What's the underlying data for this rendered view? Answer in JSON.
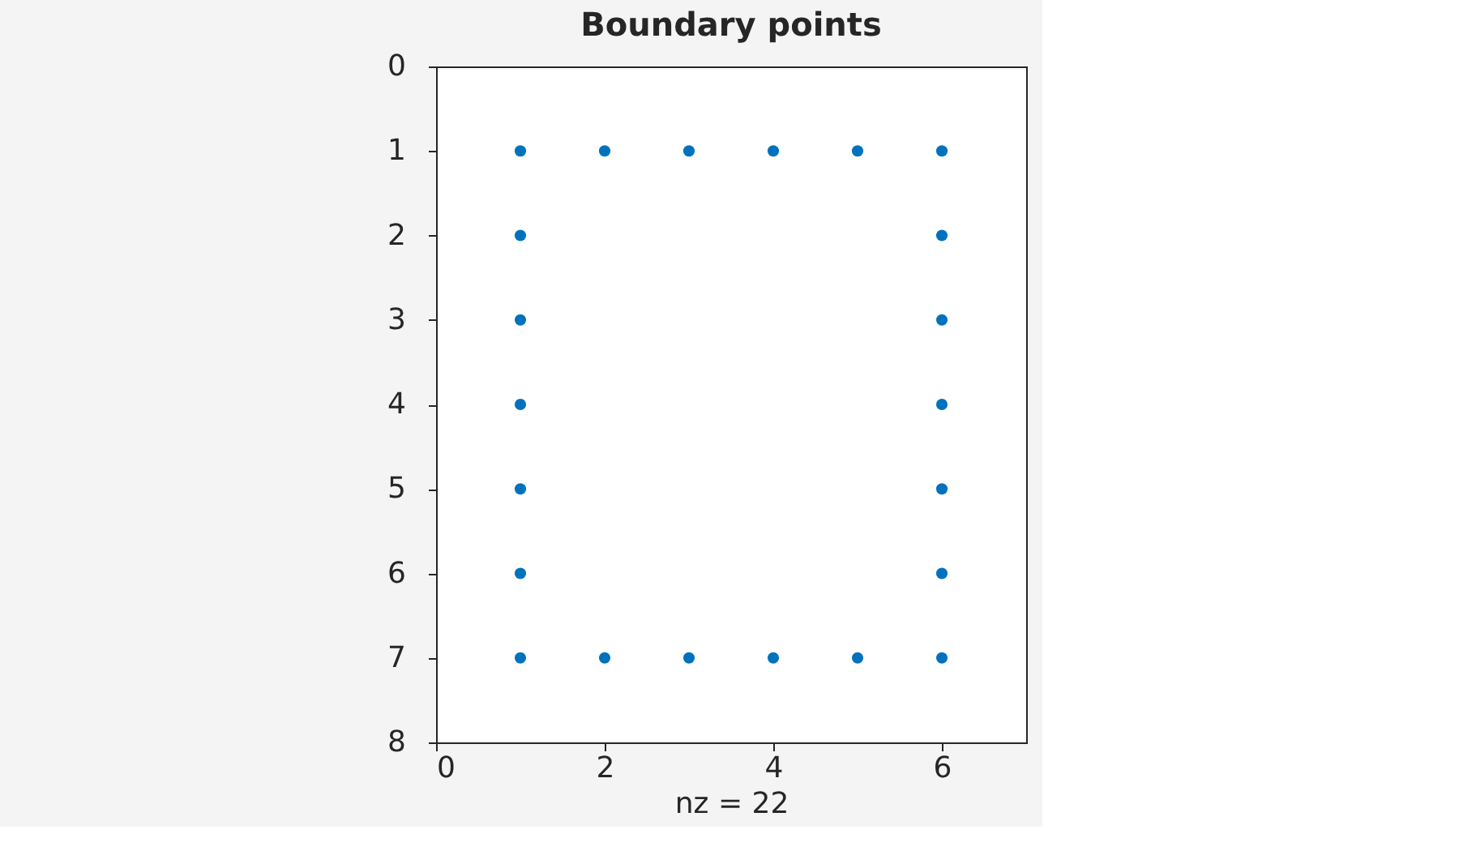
{
  "chart_data": {
    "type": "scatter",
    "title": "Boundary points",
    "xlabel": "nz = 22",
    "x": [
      1,
      2,
      3,
      4,
      5,
      6,
      1,
      6,
      1,
      6,
      1,
      6,
      1,
      6,
      1,
      6,
      1,
      2,
      3,
      4,
      5,
      6
    ],
    "series": [
      {
        "color": "#0072bd",
        "values": [
          1,
          1,
          1,
          1,
          1,
          1,
          2,
          2,
          3,
          3,
          4,
          4,
          5,
          5,
          6,
          6,
          7,
          7,
          7,
          7,
          7,
          7
        ]
      }
    ],
    "xlim": [
      0,
      7
    ],
    "xticks": [
      0,
      2,
      4,
      6
    ],
    "ylim": [
      8,
      0
    ],
    "yticks": [
      0,
      1,
      2,
      3,
      4,
      5,
      6,
      7,
      8
    ],
    "grid": false,
    "marker": "circle"
  }
}
